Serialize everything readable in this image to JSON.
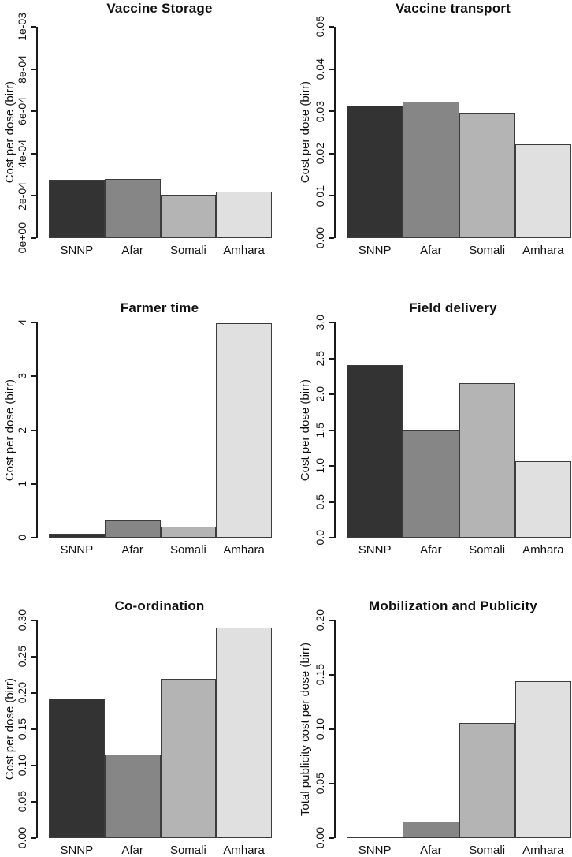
{
  "figure": {
    "background": "#ffffff",
    "layout": "2x3-grid-of-barplots"
  },
  "palette": {
    "bar_colors": [
      "#333333",
      "#868686",
      "#b4b4b4",
      "#e0e0e0"
    ],
    "bar_border": "#3c3c3c",
    "axis_color": "#1a1a1a",
    "text_color": "#111111"
  },
  "chart_data": [
    {
      "type": "bar",
      "title": "Vaccine Storage",
      "ylabel": "Cost per dose (birr)",
      "categories": [
        "SNNP",
        "Afar",
        "Somali",
        "Amhara"
      ],
      "values": [
        0.000278,
        0.000279,
        0.000204,
        0.000222
      ],
      "ylim": [
        0,
        0.001
      ],
      "ytick_values": [
        0,
        0.0002,
        0.0004,
        0.0006,
        0.0008,
        0.001
      ],
      "ytick_labels": [
        "0e+00",
        "2e-04",
        "4e-04",
        "6e-04",
        "8e-04",
        "1e-03"
      ],
      "grid": false,
      "legend": "none"
    },
    {
      "type": "bar",
      "title": "Vaccine transport",
      "ylabel": "Cost per dose (birr)",
      "categories": [
        "SNNP",
        "Afar",
        "Somali",
        "Amhara"
      ],
      "values": [
        0.0314,
        0.0322,
        0.0297,
        0.0222
      ],
      "ylim": [
        0,
        0.05
      ],
      "ytick_values": [
        0,
        0.01,
        0.02,
        0.03,
        0.04,
        0.05
      ],
      "ytick_labels": [
        "0.00",
        "0.01",
        "0.02",
        "0.03",
        "0.04",
        "0.05"
      ],
      "grid": false,
      "legend": "none"
    },
    {
      "type": "bar",
      "title": "Farmer time",
      "ylabel": "Cost per dose (birr)",
      "categories": [
        "SNNP",
        "Afar",
        "Somali",
        "Amhara"
      ],
      "values": [
        0.08,
        0.32,
        0.21,
        3.99
      ],
      "ylim": [
        0,
        4
      ],
      "ytick_values": [
        0,
        1,
        2,
        3,
        4
      ],
      "ytick_labels": [
        "0",
        "1",
        "2",
        "3",
        "4"
      ],
      "grid": false,
      "legend": "none"
    },
    {
      "type": "bar",
      "title": "Field delivery",
      "ylabel": "Cost per dose (birr)",
      "categories": [
        "SNNP",
        "Afar",
        "Somali",
        "Amhara"
      ],
      "values": [
        2.41,
        1.49,
        2.15,
        1.07
      ],
      "ylim": [
        0,
        3
      ],
      "ytick_values": [
        0,
        0.5,
        1,
        1.5,
        2,
        2.5,
        3
      ],
      "ytick_labels": [
        "0.0",
        "0.5",
        "1.0",
        "1.5",
        "2.0",
        "2.5",
        "3.0"
      ],
      "grid": false,
      "legend": "none"
    },
    {
      "type": "bar",
      "title": "Co-ordination",
      "ylabel": "Cost per dose (birr)",
      "categories": [
        "SNNP",
        "Afar",
        "Somali",
        "Amhara"
      ],
      "values": [
        0.192,
        0.115,
        0.22,
        0.29
      ],
      "ylim": [
        0,
        0.3
      ],
      "ytick_values": [
        0,
        0.05,
        0.1,
        0.15,
        0.2,
        0.25,
        0.3
      ],
      "ytick_labels": [
        "0.00",
        "0.05",
        "0.10",
        "0.15",
        "0.20",
        "0.25",
        "0.30"
      ],
      "grid": false,
      "legend": "none"
    },
    {
      "type": "bar",
      "title": "Mobilization and Publicity",
      "ylabel": "Total publicity cost per dose (birr)",
      "categories": [
        "SNNP",
        "Afar",
        "Somali",
        "Amhara"
      ],
      "values": [
        0.0005,
        0.015,
        0.106,
        0.1445
      ],
      "ylim": [
        0,
        0.2
      ],
      "ytick_values": [
        0,
        0.05,
        0.1,
        0.15,
        0.2
      ],
      "ytick_labels": [
        "0.00",
        "0.05",
        "0.10",
        "0.15",
        "0.20"
      ],
      "grid": false,
      "legend": "none"
    }
  ]
}
